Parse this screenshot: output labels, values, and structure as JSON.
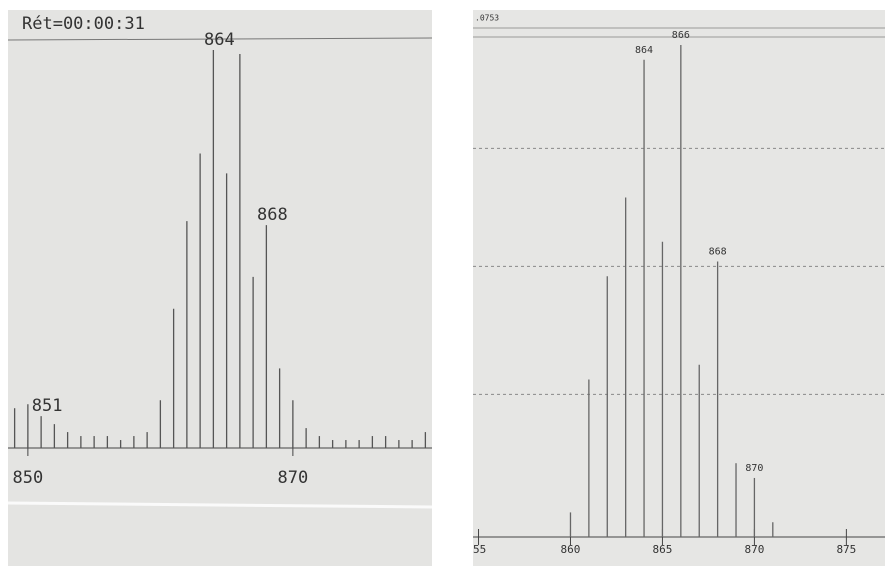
{
  "chart_data": [
    {
      "type": "bar",
      "title": "Rét=00:00:31",
      "x": [
        849,
        850,
        851,
        852,
        853,
        854,
        855,
        856,
        857,
        858,
        859,
        860,
        861,
        862,
        863,
        864,
        865,
        866,
        867,
        868,
        869,
        870,
        871,
        872,
        873,
        874,
        875,
        876,
        877,
        878,
        879,
        880
      ],
      "values": [
        10,
        11,
        8,
        6,
        4,
        3,
        3,
        3,
        2,
        3,
        4,
        12,
        35,
        57,
        74,
        100,
        69,
        99,
        43,
        56,
        20,
        12,
        5,
        3,
        2,
        2,
        2,
        3,
        3,
        2,
        2,
        4
      ],
      "xlim": [
        848.5,
        880.5
      ],
      "xticks": [
        850,
        870
      ],
      "ylim": [
        0,
        100
      ],
      "annotations": [
        851,
        864,
        868
      ],
      "color": "#555555"
    },
    {
      "type": "bar",
      "title": ".0753",
      "x": [
        860,
        861,
        862,
        863,
        864,
        865,
        866,
        867,
        868,
        869,
        870,
        871
      ],
      "values": [
        5,
        32,
        53,
        69,
        97,
        60,
        100,
        35,
        56,
        15,
        12,
        3
      ],
      "xlim": [
        854.7,
        877.1
      ],
      "xticks": [
        {
          "value": 855,
          "label": "55"
        },
        860,
        865,
        870,
        875
      ],
      "ylim": [
        0,
        100
      ],
      "gridlines": [
        29,
        55,
        79
      ],
      "annotations": [
        864,
        866,
        868,
        870
      ],
      "color": "#666666"
    }
  ]
}
